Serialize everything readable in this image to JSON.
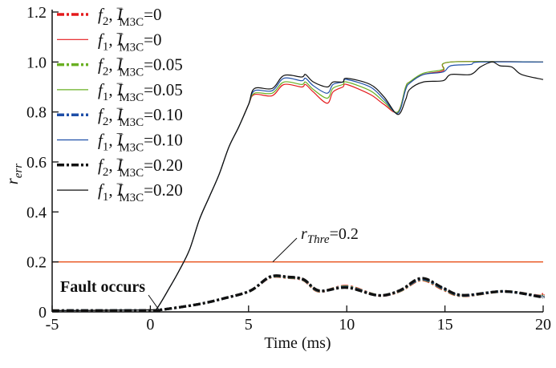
{
  "chart_data": {
    "type": "line",
    "xlabel": "Time (ms)",
    "ylabel": {
      "base": "r",
      "sub": "err"
    },
    "xlim": [
      -5,
      20
    ],
    "ylim": [
      0,
      1.2
    ],
    "xticks": [
      "-5",
      "0",
      "5",
      "10",
      "15",
      "20"
    ],
    "yticks": [
      "0",
      "0.2",
      "0.4",
      "0.6",
      "0.8",
      "1.0",
      "1.2"
    ],
    "grid": false,
    "legend_position": "top-left",
    "threshold": {
      "value": 0.2,
      "label_base": "r",
      "label_sub": "Thre",
      "label_value": "=0.2",
      "color": "#e8501a"
    },
    "annotation": {
      "text": "Fault occurs",
      "x": 0.3,
      "y": 0.01
    },
    "series": [
      {
        "name": {
          "f": "f",
          "f_sub": "2",
          "v": "I",
          "v_sub": "M3C",
          "v_sup": "−",
          "val": "=0"
        },
        "color": "#e41a1c",
        "style": "dashdot",
        "x": [
          -5,
          0,
          0.5,
          2.4,
          3.8,
          5.1,
          6.1,
          7.0,
          7.8,
          8.6,
          10.0,
          11.6,
          12.7,
          13.8,
          14.9,
          15.9,
          18.0,
          19.8,
          20
        ],
        "y": [
          0.005,
          0.006,
          0.008,
          0.03,
          0.055,
          0.085,
          0.138,
          0.137,
          0.127,
          0.082,
          0.103,
          0.066,
          0.083,
          0.128,
          0.09,
          0.064,
          0.082,
          0.064,
          0.072
        ]
      },
      {
        "name": {
          "f": "f",
          "f_sub": "1",
          "v": "I",
          "v_sub": "M3C",
          "v_sup": "−",
          "val": "=0"
        },
        "color": "#e41a1c",
        "style": "solid",
        "x": [
          -5,
          0,
          0.3,
          1,
          1.5,
          2,
          2.5,
          3,
          3.5,
          4,
          4.5,
          5,
          5.3,
          6.2,
          6.8,
          7.7,
          7.9,
          8.3,
          9.0,
          9.3,
          9.8,
          10.0,
          11.2,
          11.9,
          12.6,
          13.0,
          13.2,
          13.9,
          14.9,
          15.3,
          20
        ],
        "y": [
          0.005,
          0.008,
          0.01,
          0.1,
          0.17,
          0.25,
          0.37,
          0.46,
          0.55,
          0.66,
          0.74,
          0.83,
          0.87,
          0.865,
          0.91,
          0.9,
          0.91,
          0.88,
          0.835,
          0.88,
          0.9,
          0.91,
          0.87,
          0.83,
          0.8,
          0.9,
          0.92,
          0.95,
          0.965,
          1.0,
          1.0
        ]
      },
      {
        "name": {
          "f": "f",
          "f_sub": "2",
          "v": "I",
          "v_sub": "M3C",
          "v_sup": "−",
          "val": "=0.05"
        },
        "color": "#6ab023",
        "style": "dashdot",
        "x": [
          -5,
          0,
          0.5,
          2.4,
          3.8,
          5.1,
          6.1,
          7.0,
          7.8,
          8.6,
          10.0,
          11.6,
          12.7,
          13.8,
          14.9,
          15.9,
          18.0,
          19.8,
          20
        ],
        "y": [
          0.005,
          0.006,
          0.008,
          0.03,
          0.055,
          0.085,
          0.139,
          0.138,
          0.128,
          0.083,
          0.101,
          0.066,
          0.084,
          0.13,
          0.092,
          0.065,
          0.082,
          0.063,
          0.066
        ]
      },
      {
        "name": {
          "f": "f",
          "f_sub": "1",
          "v": "I",
          "v_sub": "M3C",
          "v_sup": "−",
          "val": "=0.05"
        },
        "color": "#6ab023",
        "style": "solid",
        "x": [
          -5,
          0,
          0.3,
          1,
          1.5,
          2,
          2.5,
          3,
          3.5,
          4,
          4.5,
          5,
          5.3,
          6.2,
          6.8,
          7.7,
          7.9,
          8.3,
          9.0,
          9.3,
          9.8,
          10.0,
          11.2,
          11.9,
          12.6,
          13.0,
          13.2,
          13.9,
          14.9,
          15.3,
          20
        ],
        "y": [
          0.005,
          0.008,
          0.01,
          0.1,
          0.17,
          0.25,
          0.37,
          0.46,
          0.55,
          0.66,
          0.74,
          0.83,
          0.875,
          0.875,
          0.92,
          0.91,
          0.92,
          0.89,
          0.855,
          0.895,
          0.91,
          0.92,
          0.885,
          0.84,
          0.8,
          0.9,
          0.92,
          0.955,
          0.97,
          1.0,
          1.0
        ]
      },
      {
        "name": {
          "f": "f",
          "f_sub": "2",
          "v": "I",
          "v_sub": "M3C",
          "v_sup": "−",
          "val": "=0.10"
        },
        "color": "#1f4fa8",
        "style": "dashdot",
        "x": [
          -5,
          0,
          0.5,
          2.4,
          3.8,
          5.1,
          6.1,
          7.0,
          7.8,
          8.6,
          10.0,
          11.6,
          12.7,
          13.8,
          14.9,
          15.9,
          18.0,
          19.8,
          20
        ],
        "y": [
          0.005,
          0.006,
          0.008,
          0.03,
          0.055,
          0.085,
          0.14,
          0.139,
          0.129,
          0.084,
          0.099,
          0.066,
          0.085,
          0.132,
          0.094,
          0.066,
          0.082,
          0.062,
          0.062
        ]
      },
      {
        "name": {
          "f": "f",
          "f_sub": "1",
          "v": "I",
          "v_sub": "M3C",
          "v_sup": "−",
          "val": "=0.10"
        },
        "color": "#1f4fa8",
        "style": "solid",
        "x": [
          -5,
          0,
          0.3,
          1,
          1.5,
          2,
          2.5,
          3,
          3.5,
          4,
          4.5,
          5,
          5.3,
          6.2,
          6.8,
          7.7,
          7.9,
          8.3,
          9.0,
          9.3,
          9.8,
          10.0,
          11.2,
          11.9,
          12.6,
          13.0,
          13.2,
          13.9,
          14.9,
          15.3,
          16.3,
          16.8,
          20
        ],
        "y": [
          0.005,
          0.008,
          0.01,
          0.1,
          0.17,
          0.25,
          0.37,
          0.46,
          0.55,
          0.66,
          0.74,
          0.83,
          0.885,
          0.885,
          0.935,
          0.925,
          0.935,
          0.905,
          0.875,
          0.91,
          0.92,
          0.93,
          0.9,
          0.85,
          0.795,
          0.89,
          0.915,
          0.95,
          0.96,
          0.985,
          0.99,
          1.0,
          1.0
        ]
      },
      {
        "name": {
          "f": "f",
          "f_sub": "2",
          "v": "I",
          "v_sub": "M3C",
          "v_sup": "−",
          "val": "=0.20"
        },
        "color": "#111111",
        "style": "dashdot",
        "x": [
          -5,
          0,
          0.5,
          2.4,
          3.8,
          5.1,
          6.1,
          7.0,
          7.8,
          8.6,
          10.0,
          11.6,
          12.7,
          13.8,
          14.9,
          15.9,
          18.0,
          19.8,
          20
        ],
        "y": [
          0.005,
          0.006,
          0.008,
          0.03,
          0.055,
          0.085,
          0.141,
          0.14,
          0.13,
          0.085,
          0.097,
          0.066,
          0.086,
          0.135,
          0.096,
          0.067,
          0.082,
          0.061,
          0.058
        ]
      },
      {
        "name": {
          "f": "f",
          "f_sub": "1",
          "v": "I",
          "v_sub": "M3C",
          "v_sup": "−",
          "val": "=0.20"
        },
        "color": "#111111",
        "style": "solid",
        "x": [
          -5,
          0,
          0.3,
          1,
          1.5,
          2,
          2.5,
          3,
          3.5,
          4,
          4.5,
          5,
          5.3,
          6.2,
          6.8,
          7.7,
          7.9,
          8.3,
          9.0,
          9.3,
          9.8,
          10.0,
          11.2,
          11.9,
          12.6,
          13.0,
          13.2,
          13.9,
          14.9,
          15.3,
          16.3,
          16.8,
          17.4,
          17.8,
          18.4,
          18.9,
          20
        ],
        "y": [
          0.005,
          0.008,
          0.01,
          0.1,
          0.17,
          0.25,
          0.37,
          0.46,
          0.55,
          0.66,
          0.74,
          0.83,
          0.894,
          0.894,
          0.946,
          0.94,
          0.95,
          0.92,
          0.9,
          0.92,
          0.92,
          0.935,
          0.91,
          0.86,
          0.79,
          0.85,
          0.89,
          0.92,
          0.925,
          0.95,
          0.95,
          0.98,
          1.0,
          0.985,
          0.98,
          0.95,
          0.93
        ]
      }
    ]
  }
}
